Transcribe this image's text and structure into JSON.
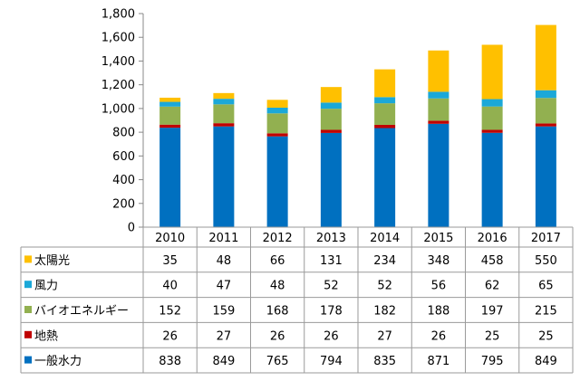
{
  "chart_data": {
    "type": "bar",
    "stacked": true,
    "categories": [
      "2010",
      "2011",
      "2012",
      "2013",
      "2014",
      "2015",
      "2016",
      "2017"
    ],
    "series": [
      {
        "name": "一般水力",
        "color": "#0070C0",
        "values": [
          838,
          849,
          765,
          794,
          835,
          871,
          795,
          849
        ]
      },
      {
        "name": "地熱",
        "color": "#C00000",
        "values": [
          26,
          27,
          26,
          26,
          27,
          26,
          25,
          25
        ]
      },
      {
        "name": "バイオエネルギー",
        "color": "#92B050",
        "values": [
          152,
          159,
          168,
          178,
          182,
          188,
          197,
          215
        ]
      },
      {
        "name": "風力",
        "color": "#1BA8D8",
        "values": [
          40,
          47,
          48,
          52,
          52,
          56,
          62,
          65
        ]
      },
      {
        "name": "太陽光",
        "color": "#FFC000",
        "values": [
          35,
          48,
          66,
          131,
          234,
          348,
          458,
          550
        ]
      }
    ],
    "ylim": [
      0,
      1800
    ],
    "yticks": [
      "0",
      "200",
      "400",
      "600",
      "800",
      "1,000",
      "1,200",
      "1,400",
      "1,600",
      "1,800"
    ],
    "grid": false,
    "legend": "data-table",
    "table_row_order": [
      "太陽光",
      "風力",
      "バイオエネルギー",
      "地熱",
      "一般水力"
    ]
  }
}
